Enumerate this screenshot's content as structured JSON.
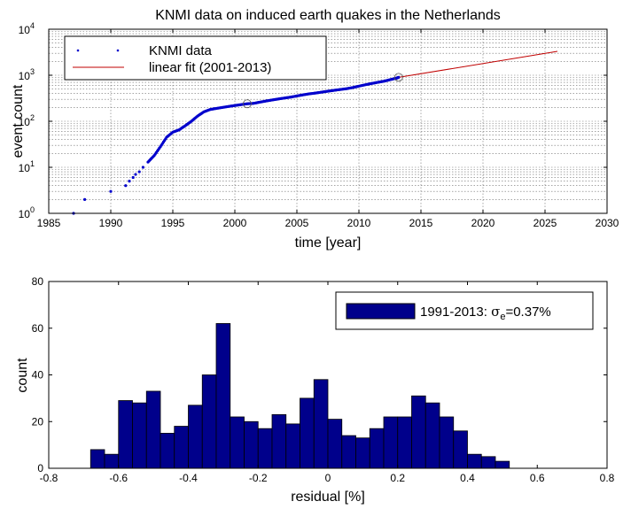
{
  "chart_data": [
    {
      "type": "scatter",
      "title": "KNMI data on induced earth quakes in the Netherlands",
      "xlabel": "time [year]",
      "ylabel": "event count",
      "xlim": [
        1985,
        2030
      ],
      "ylim": [
        1,
        10000
      ],
      "yscale": "log",
      "grid": true,
      "legend_position": "top-left",
      "x_ticks": [
        "1985",
        "1990",
        "1995",
        "2000",
        "2005",
        "2010",
        "2015",
        "2020",
        "2025",
        "2030"
      ],
      "y_ticks": [
        {
          "base": "10",
          "exp": "0"
        },
        {
          "base": "10",
          "exp": "1"
        },
        {
          "base": "10",
          "exp": "2"
        },
        {
          "base": "10",
          "exp": "3"
        },
        {
          "base": "10",
          "exp": "4"
        }
      ],
      "series": [
        {
          "name": "KNMI data",
          "kind": "points",
          "color": "#0000cc",
          "points": [
            [
              1987.0,
              1
            ],
            [
              1987.9,
              2
            ],
            [
              1990.0,
              3
            ],
            [
              1991.2,
              4
            ],
            [
              1991.5,
              5
            ],
            [
              1991.8,
              6
            ],
            [
              1992.0,
              7
            ],
            [
              1992.3,
              8
            ],
            [
              1992.6,
              10
            ],
            [
              1993.0,
              13
            ],
            [
              1993.5,
              18
            ],
            [
              1994.0,
              28
            ],
            [
              1994.5,
              45
            ],
            [
              1995.0,
              58
            ],
            [
              1995.5,
              65
            ],
            [
              1996.0,
              80
            ],
            [
              1996.5,
              100
            ],
            [
              1997.0,
              130
            ],
            [
              1997.5,
              160
            ],
            [
              1998.0,
              180
            ],
            [
              1998.5,
              190
            ],
            [
              1999.0,
              200
            ],
            [
              1999.5,
              210
            ],
            [
              2000.0,
              220
            ],
            [
              2000.5,
              230
            ],
            [
              2001.0,
              240
            ],
            [
              2001.5,
              245
            ],
            [
              2002.0,
              260
            ],
            [
              2002.5,
              275
            ],
            [
              2003.0,
              290
            ],
            [
              2003.5,
              305
            ],
            [
              2004.0,
              320
            ],
            [
              2004.5,
              335
            ],
            [
              2005.0,
              355
            ],
            [
              2005.5,
              375
            ],
            [
              2006.0,
              395
            ],
            [
              2006.5,
              410
            ],
            [
              2007.0,
              430
            ],
            [
              2007.5,
              450
            ],
            [
              2008.0,
              470
            ],
            [
              2008.5,
              490
            ],
            [
              2009.0,
              510
            ],
            [
              2009.5,
              540
            ],
            [
              2010.0,
              580
            ],
            [
              2010.5,
              620
            ],
            [
              2011.0,
              660
            ],
            [
              2011.5,
              700
            ],
            [
              2012.0,
              740
            ],
            [
              2012.5,
              800
            ],
            [
              2013.0,
              860
            ],
            [
              2013.2,
              900
            ]
          ]
        },
        {
          "name": "linear fit (2001-2013)",
          "kind": "line",
          "color": "#c00000",
          "points": [
            [
              2013.2,
              900
            ],
            [
              2026.0,
              3300
            ]
          ]
        }
      ],
      "circle_markers": [
        [
          2001.0,
          240
        ],
        [
          2013.2,
          900
        ]
      ]
    },
    {
      "type": "bar",
      "xlabel": "residual [%]",
      "ylabel": "count",
      "xlim": [
        -0.8,
        0.8
      ],
      "ylim": [
        0,
        80
      ],
      "grid": false,
      "legend_position": "top-right",
      "legend": {
        "prefix": "1991-2013: ",
        "symbol": "σ",
        "subscript": "e",
        "suffix": "=0.37%"
      },
      "bar_color": "#00008b",
      "bin_width": 0.04,
      "x_ticks": [
        "-0.8",
        "-0.6",
        "-0.4",
        "-0.2",
        "0",
        "0.2",
        "0.4",
        "0.6",
        "0.8"
      ],
      "y_ticks": [
        "0",
        "20",
        "40",
        "60",
        "80"
      ],
      "bins": [
        {
          "x": -0.66,
          "count": 8
        },
        {
          "x": -0.62,
          "count": 6
        },
        {
          "x": -0.58,
          "count": 29
        },
        {
          "x": -0.54,
          "count": 28
        },
        {
          "x": -0.5,
          "count": 33
        },
        {
          "x": -0.46,
          "count": 15
        },
        {
          "x": -0.42,
          "count": 18
        },
        {
          "x": -0.38,
          "count": 27
        },
        {
          "x": -0.34,
          "count": 40
        },
        {
          "x": -0.3,
          "count": 62
        },
        {
          "x": -0.26,
          "count": 22
        },
        {
          "x": -0.22,
          "count": 20
        },
        {
          "x": -0.18,
          "count": 17
        },
        {
          "x": -0.14,
          "count": 23
        },
        {
          "x": -0.1,
          "count": 19
        },
        {
          "x": -0.06,
          "count": 30
        },
        {
          "x": -0.02,
          "count": 38
        },
        {
          "x": 0.02,
          "count": 21
        },
        {
          "x": 0.06,
          "count": 14
        },
        {
          "x": 0.1,
          "count": 13
        },
        {
          "x": 0.14,
          "count": 17
        },
        {
          "x": 0.18,
          "count": 22
        },
        {
          "x": 0.22,
          "count": 22
        },
        {
          "x": 0.26,
          "count": 31
        },
        {
          "x": 0.3,
          "count": 28
        },
        {
          "x": 0.34,
          "count": 22
        },
        {
          "x": 0.38,
          "count": 16
        },
        {
          "x": 0.42,
          "count": 6
        },
        {
          "x": 0.46,
          "count": 5
        },
        {
          "x": 0.5,
          "count": 3
        }
      ]
    }
  ]
}
